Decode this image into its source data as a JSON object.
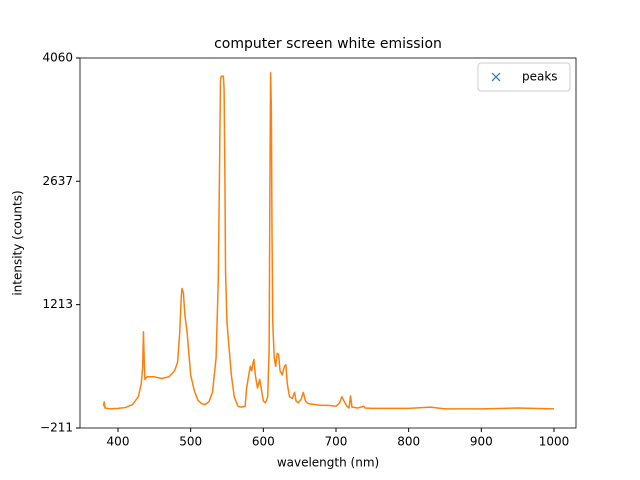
{
  "chart_data": {
    "type": "line",
    "title": "computer screen white emission",
    "xlabel": "wavelength (nm)",
    "ylabel": "intensity (counts)",
    "xlim": [
      347.7,
      1030.3
    ],
    "xticks": [
      400,
      500,
      600,
      700,
      800,
      900,
      1000
    ],
    "ylim": [
      -211,
      4060
    ],
    "yticks": [
      {
        "value": -211,
        "label": "−211"
      },
      1213,
      2637,
      4060
    ],
    "legend": "upper right",
    "series": [
      {
        "color": "#ff7f0e",
        "x": [
          380,
          381,
          382,
          390,
          400,
          410,
          420,
          428,
          432,
          434,
          435,
          436,
          437,
          440,
          450,
          460,
          470,
          478,
          482,
          485,
          487,
          488,
          490,
          492,
          495,
          497,
          500,
          505,
          510,
          515,
          520,
          525,
          530,
          535,
          538,
          540,
          541,
          542,
          545,
          546,
          547,
          548,
          550,
          553,
          556,
          560,
          565,
          570,
          575,
          577,
          580,
          582,
          584,
          586,
          587,
          589,
          592,
          595,
          597,
          600,
          603,
          606,
          608,
          609,
          610,
          611,
          612,
          613,
          615,
          617,
          619,
          621,
          623,
          626,
          629,
          631,
          633,
          636,
          640,
          643,
          645,
          648,
          652,
          655,
          658,
          662,
          670,
          680,
          690,
          700,
          705,
          708,
          711,
          715,
          718,
          720,
          722,
          730,
          738,
          740,
          750,
          800,
          830,
          850,
          900,
          950,
          1000
        ],
        "values": [
          40,
          90,
          20,
          10,
          15,
          25,
          60,
          150,
          300,
          500,
          900,
          600,
          350,
          380,
          380,
          360,
          380,
          450,
          550,
          900,
          1300,
          1400,
          1350,
          1100,
          900,
          700,
          400,
          220,
          110,
          70,
          60,
          90,
          200,
          600,
          1500,
          3000,
          3800,
          3850,
          3850,
          3700,
          2800,
          1600,
          1000,
          700,
          400,
          150,
          40,
          30,
          40,
          250,
          400,
          500,
          450,
          550,
          580,
          400,
          250,
          350,
          250,
          100,
          80,
          150,
          700,
          2500,
          3890,
          3500,
          2000,
          1000,
          600,
          500,
          650,
          640,
          450,
          400,
          500,
          520,
          300,
          150,
          130,
          200,
          100,
          80,
          120,
          200,
          100,
          70,
          60,
          50,
          50,
          40,
          80,
          150,
          100,
          40,
          20,
          160,
          30,
          20,
          40,
          20,
          15,
          15,
          30,
          10,
          10,
          20,
          10
        ]
      },
      {
        "name": "peaks",
        "color": "#1f77b4",
        "marker": "x",
        "x": [],
        "values": []
      }
    ]
  }
}
